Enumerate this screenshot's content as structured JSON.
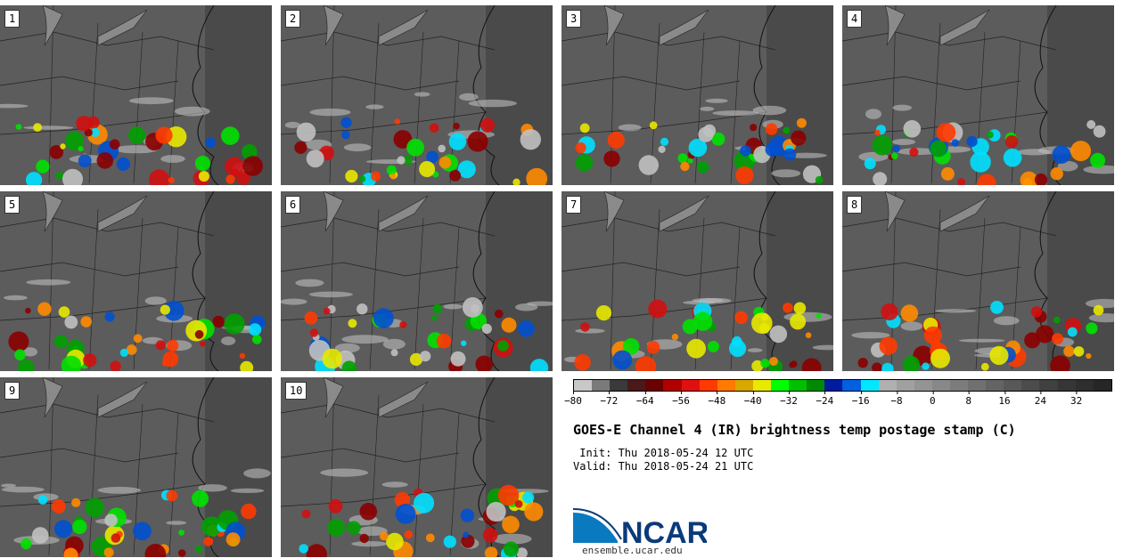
{
  "panels": [
    {
      "label": "1"
    },
    {
      "label": "2"
    },
    {
      "label": "3"
    },
    {
      "label": "4"
    },
    {
      "label": "5"
    },
    {
      "label": "6"
    },
    {
      "label": "7"
    },
    {
      "label": "8"
    },
    {
      "label": "9"
    },
    {
      "label": "10"
    }
  ],
  "colorbar": {
    "colors": [
      "#c8c8c8",
      "#7a7a7a",
      "#3a3a3a",
      "#4a1a1a",
      "#6a0000",
      "#b00000",
      "#e01010",
      "#ff3a00",
      "#ff7a00",
      "#d8a800",
      "#e8e800",
      "#00ff00",
      "#00c000",
      "#008a00",
      "#001aa0",
      "#0060e0",
      "#00e8ff",
      "#b0b0b0",
      "#a0a0a0",
      "#949494",
      "#888888",
      "#7c7c7c",
      "#707070",
      "#646464",
      "#585858",
      "#4c4c4c",
      "#404040",
      "#363636",
      "#2e2e2e",
      "#262626"
    ],
    "ticks": [
      "−80",
      "−72",
      "−64",
      "−56",
      "−48",
      "−40",
      "−32",
      "−24",
      "−16",
      "−8",
      "0",
      "8",
      "16",
      "24",
      "32"
    ]
  },
  "title": "GOES-E Channel 4 (IR) brightness temp postage stamp (C)",
  "init_line": " Init: Thu 2018-05-24 12 UTC",
  "valid_line": "Valid: Thu 2018-05-24 21 UTC",
  "logo": {
    "text": "NCAR",
    "url": "ensemble.ucar.edu",
    "color": "#0a3a7a"
  }
}
